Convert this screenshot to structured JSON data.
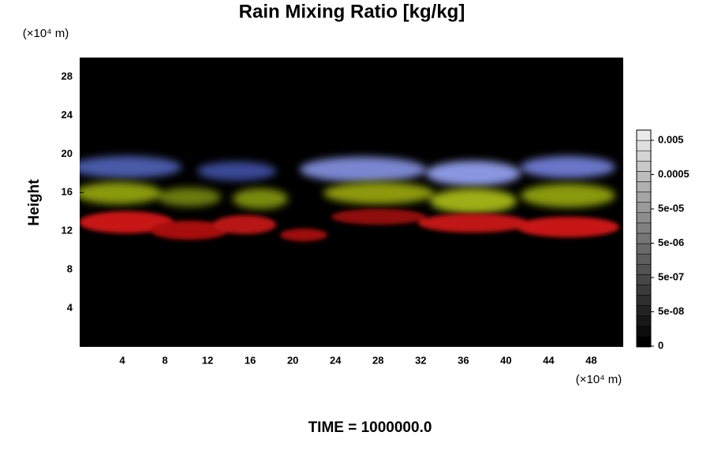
{
  "chart_data": {
    "type": "heatmap",
    "title": "Rain Mixing Ratio [kg/kg]",
    "y_label": "Height",
    "x_unit": "(×10⁴ m)",
    "y_unit": "(×10⁴ m)",
    "footer": "TIME = 1000000.0",
    "xlim": [
      0,
      51
    ],
    "xticks": [
      4,
      8,
      12,
      16,
      20,
      24,
      28,
      32,
      36,
      40,
      44,
      48
    ],
    "ylim": [
      0,
      30
    ],
    "yticks": [
      4,
      8,
      12,
      16,
      20,
      24,
      28
    ],
    "colorbar_ticks": [
      0,
      {
        "value": 5e-08,
        "label": "5e-08"
      },
      {
        "value": 5e-07,
        "label": "5e-07"
      },
      {
        "value": 5e-06,
        "label": "5e-06"
      },
      {
        "value": 5e-05,
        "label": "5e-05"
      },
      0.0005,
      0.005
    ]
  }
}
